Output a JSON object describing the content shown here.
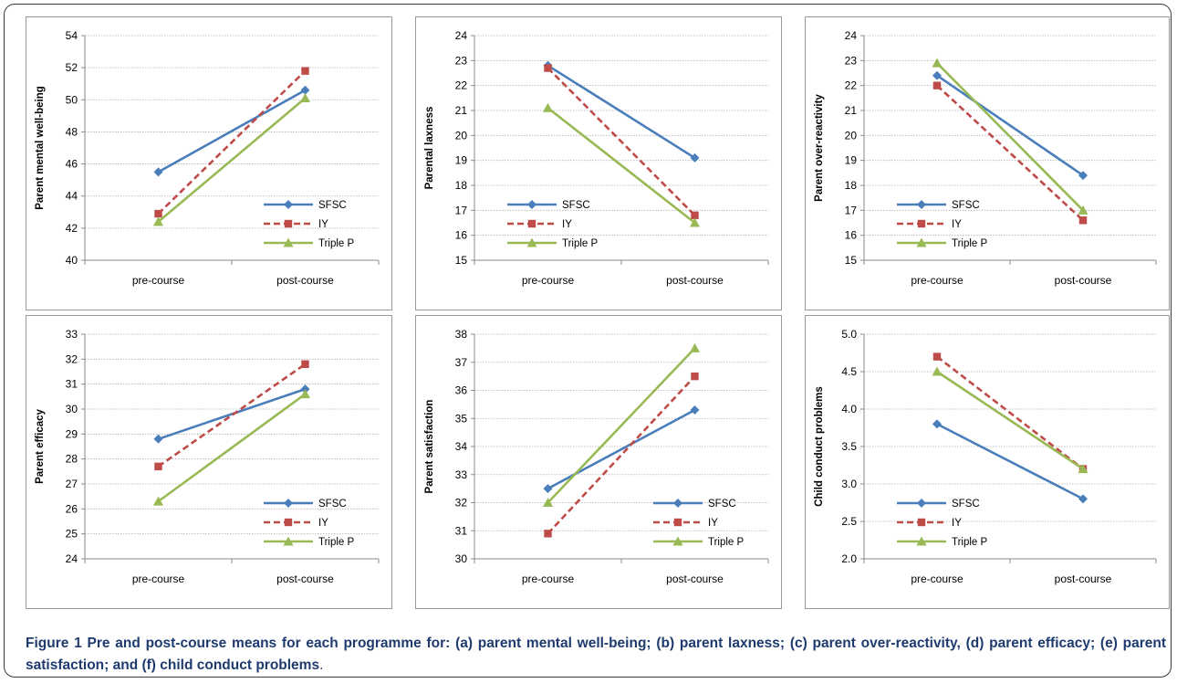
{
  "caption": {
    "label": "Figure 1",
    "text": "Pre and post-course means for each programme for: (a) parent mental well-being; (b) parent laxness; (c) parent over-reactivity, (d) parent efficacy; (e) parent satisfaction; and (f) child conduct problems",
    "end": "."
  },
  "colors": {
    "SFSC": "#4a7ebb",
    "IY": "#be4b48",
    "Triple P": "#98b954"
  },
  "chart_data": [
    {
      "type": "line",
      "ylabel": "Parent mental well-being",
      "categories": [
        "pre-course",
        "post-course"
      ],
      "ylim": [
        40,
        54
      ],
      "yticks": [
        "40",
        "42",
        "44",
        "46",
        "48",
        "50",
        "52",
        "54"
      ],
      "legend_position": "bottom-right",
      "grid": true,
      "series": [
        {
          "name": "SFSC",
          "values": [
            45.5,
            50.6
          ]
        },
        {
          "name": "IY",
          "values": [
            42.9,
            51.8
          ]
        },
        {
          "name": "Triple P",
          "values": [
            42.4,
            50.1
          ]
        }
      ]
    },
    {
      "type": "line",
      "ylabel": "Parental laxness",
      "categories": [
        "pre-course",
        "post-course"
      ],
      "ylim": [
        15,
        24
      ],
      "yticks": [
        "15",
        "16",
        "17",
        "18",
        "19",
        "20",
        "21",
        "22",
        "23",
        "24"
      ],
      "legend_position": "bottom-left",
      "grid": true,
      "series": [
        {
          "name": "SFSC",
          "values": [
            22.8,
            19.1
          ]
        },
        {
          "name": "IY",
          "values": [
            22.7,
            16.8
          ]
        },
        {
          "name": "Triple P",
          "values": [
            21.1,
            16.5
          ]
        }
      ]
    },
    {
      "type": "line",
      "ylabel": "Parent over-reactivity",
      "categories": [
        "pre-course",
        "post-course"
      ],
      "ylim": [
        15,
        24
      ],
      "yticks": [
        "15",
        "16",
        "17",
        "18",
        "19",
        "20",
        "21",
        "22",
        "23",
        "24"
      ],
      "legend_position": "bottom-left",
      "grid": true,
      "series": [
        {
          "name": "SFSC",
          "values": [
            22.4,
            18.4
          ]
        },
        {
          "name": "IY",
          "values": [
            22.0,
            16.6
          ]
        },
        {
          "name": "Triple P",
          "values": [
            22.9,
            17.0
          ]
        }
      ]
    },
    {
      "type": "line",
      "ylabel": "Parent  efficacy",
      "categories": [
        "pre-course",
        "post-course"
      ],
      "ylim": [
        24,
        33
      ],
      "yticks": [
        "24",
        "25",
        "26",
        "27",
        "28",
        "29",
        "30",
        "31",
        "32",
        "33"
      ],
      "legend_position": "bottom-right",
      "grid": true,
      "series": [
        {
          "name": "SFSC",
          "values": [
            28.8,
            30.8
          ]
        },
        {
          "name": "IY",
          "values": [
            27.7,
            31.8
          ]
        },
        {
          "name": "Triple P",
          "values": [
            26.3,
            30.6
          ]
        }
      ]
    },
    {
      "type": "line",
      "ylabel": "Parent satisfaction",
      "categories": [
        "pre-course",
        "post-course"
      ],
      "ylim": [
        30,
        38
      ],
      "yticks": [
        "30",
        "31",
        "32",
        "33",
        "34",
        "35",
        "36",
        "37",
        "38"
      ],
      "legend_position": "bottom-right",
      "grid": true,
      "series": [
        {
          "name": "SFSC",
          "values": [
            32.5,
            35.3
          ]
        },
        {
          "name": "IY",
          "values": [
            30.9,
            36.5
          ]
        },
        {
          "name": "Triple P",
          "values": [
            32.0,
            37.5
          ]
        }
      ]
    },
    {
      "type": "line",
      "ylabel": "Child conduct problems",
      "categories": [
        "pre-course",
        "post-course"
      ],
      "ylim": [
        2.0,
        5.0
      ],
      "yticks": [
        "2.0",
        "2.5",
        "3.0",
        "3.5",
        "4.0",
        "4.5",
        "5.0"
      ],
      "legend_position": "bottom-left",
      "grid": true,
      "series": [
        {
          "name": "SFSC",
          "values": [
            3.8,
            2.8
          ]
        },
        {
          "name": "IY",
          "values": [
            4.7,
            3.2
          ]
        },
        {
          "name": "Triple P",
          "values": [
            4.5,
            3.2
          ]
        }
      ]
    }
  ]
}
